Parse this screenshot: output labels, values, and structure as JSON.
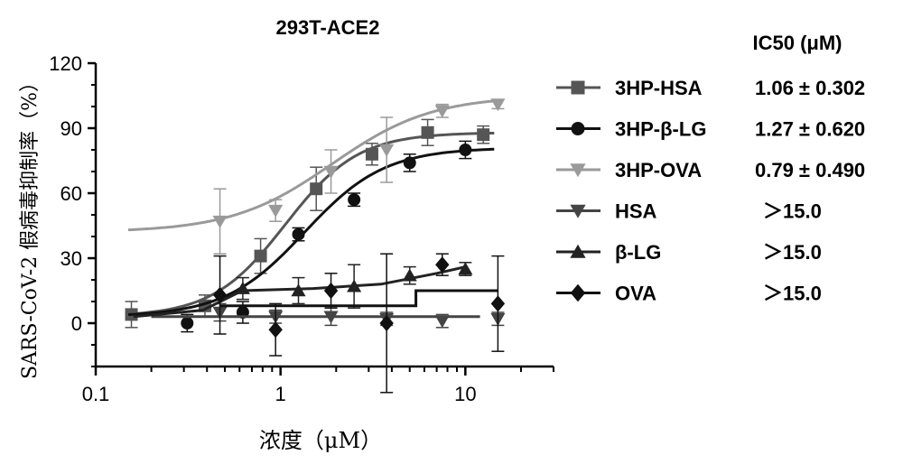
{
  "chart_data": {
    "type": "scatter",
    "title": "293T-ACE2",
    "xlabel": "浓度（μM）",
    "ylabel": "SARS-CoV-2 假病毒抑制率（%）",
    "xscale": "log",
    "xlim": [
      0.1,
      30
    ],
    "ylim": [
      -20,
      120
    ],
    "xticks": [
      0.1,
      1,
      10
    ],
    "xtick_labels": [
      "0.1",
      "1",
      "10"
    ],
    "yticks": [
      0,
      30,
      60,
      90,
      120
    ],
    "ytick_labels": [
      "0",
      "30",
      "60",
      "90",
      "120"
    ],
    "ic50_header": "IC50 (μM)",
    "grid": false,
    "legend_position": "right",
    "series": [
      {
        "name": "3HP-HSA",
        "marker": "square",
        "color": "#555555",
        "ic50": "1.06 ± 0.302",
        "points": [
          {
            "x": 0.156,
            "y": 4,
            "err": 6
          },
          {
            "x": 0.39,
            "y": 8,
            "err": 5
          },
          {
            "x": 0.78,
            "y": 31,
            "err": 8
          },
          {
            "x": 1.56,
            "y": 62,
            "err": 10
          },
          {
            "x": 3.125,
            "y": 78,
            "err": 5
          },
          {
            "x": 6.25,
            "y": 88,
            "err": 6
          },
          {
            "x": 12.5,
            "y": 87,
            "err": 4
          }
        ],
        "curve": {
          "bottom": 3,
          "top": 88,
          "ec50": 1.06,
          "hill": 2.2
        }
      },
      {
        "name": "3HP-β-LG",
        "marker": "circle",
        "color": "#111111",
        "ic50": "1.27 ± 0.620",
        "points": [
          {
            "x": 0.3125,
            "y": 0,
            "err": 4
          },
          {
            "x": 0.625,
            "y": 5,
            "err": 5
          },
          {
            "x": 1.25,
            "y": 41,
            "err": 3
          },
          {
            "x": 2.5,
            "y": 57,
            "err": 3
          },
          {
            "x": 5.0,
            "y": 74,
            "err": 4
          },
          {
            "x": 10.0,
            "y": 80,
            "err": 4
          }
        ],
        "curve": {
          "bottom": 3,
          "top": 81,
          "ec50": 1.35,
          "hill": 2.0
        }
      },
      {
        "name": "3HP-OVA",
        "marker": "triangle-down",
        "color": "#9a9a9a",
        "ic50": "0.79 ± 0.490",
        "points": [
          {
            "x": 0.47,
            "y": 47,
            "err": 15
          },
          {
            "x": 0.94,
            "y": 52,
            "err": 5
          },
          {
            "x": 1.875,
            "y": 70,
            "err": 10
          },
          {
            "x": 3.75,
            "y": 80,
            "err": 15
          },
          {
            "x": 7.5,
            "y": 98,
            "err": 3
          },
          {
            "x": 15.0,
            "y": 101,
            "err": 2
          }
        ],
        "curve": {
          "bottom": 42,
          "top": 105,
          "ec50": 1.9,
          "hill": 1.6
        }
      },
      {
        "name": "HSA",
        "marker": "triangle-down",
        "color": "#444444",
        "ic50": "＞15.0",
        "points": [
          {
            "x": 0.47,
            "y": 5,
            "err": 4
          },
          {
            "x": 0.94,
            "y": 3,
            "err": 3
          },
          {
            "x": 1.875,
            "y": 3,
            "err": 4
          },
          {
            "x": 3.75,
            "y": 2,
            "err": 3
          },
          {
            "x": 7.5,
            "y": 1,
            "err": 3
          },
          {
            "x": 15.0,
            "y": 2,
            "err": 3
          }
        ],
        "line": [
          [
            0.2,
            3
          ],
          [
            12,
            3
          ]
        ]
      },
      {
        "name": "β-LG",
        "marker": "triangle-up",
        "color": "#222222",
        "ic50": "＞15.0",
        "points": [
          {
            "x": 0.625,
            "y": 16,
            "err": 5
          },
          {
            "x": 1.25,
            "y": 15,
            "err": 6
          },
          {
            "x": 2.5,
            "y": 17,
            "err": 10
          },
          {
            "x": 5.0,
            "y": 22,
            "err": 4
          },
          {
            "x": 10.0,
            "y": 25,
            "err": 3
          }
        ],
        "line": [
          [
            0.16,
            3
          ],
          [
            0.38,
            6
          ],
          [
            0.62,
            15
          ],
          [
            1.5,
            16
          ],
          [
            3.5,
            18
          ],
          [
            7,
            23
          ],
          [
            10,
            26
          ]
        ]
      },
      {
        "name": "OVA",
        "marker": "diamond",
        "color": "#111111",
        "ic50": "＞15.0",
        "points": [
          {
            "x": 0.47,
            "y": 13,
            "err": 18
          },
          {
            "x": 0.94,
            "y": -3,
            "err": 12
          },
          {
            "x": 1.875,
            "y": 15,
            "err": 8
          },
          {
            "x": 3.75,
            "y": 0,
            "err": 32
          },
          {
            "x": 7.5,
            "y": 27,
            "err": 5
          },
          {
            "x": 15.0,
            "y": 9,
            "err": 22
          }
        ],
        "line": [
          [
            0.47,
            8
          ],
          [
            5.4,
            8
          ],
          [
            5.4,
            15
          ],
          [
            15,
            15
          ]
        ]
      }
    ]
  }
}
